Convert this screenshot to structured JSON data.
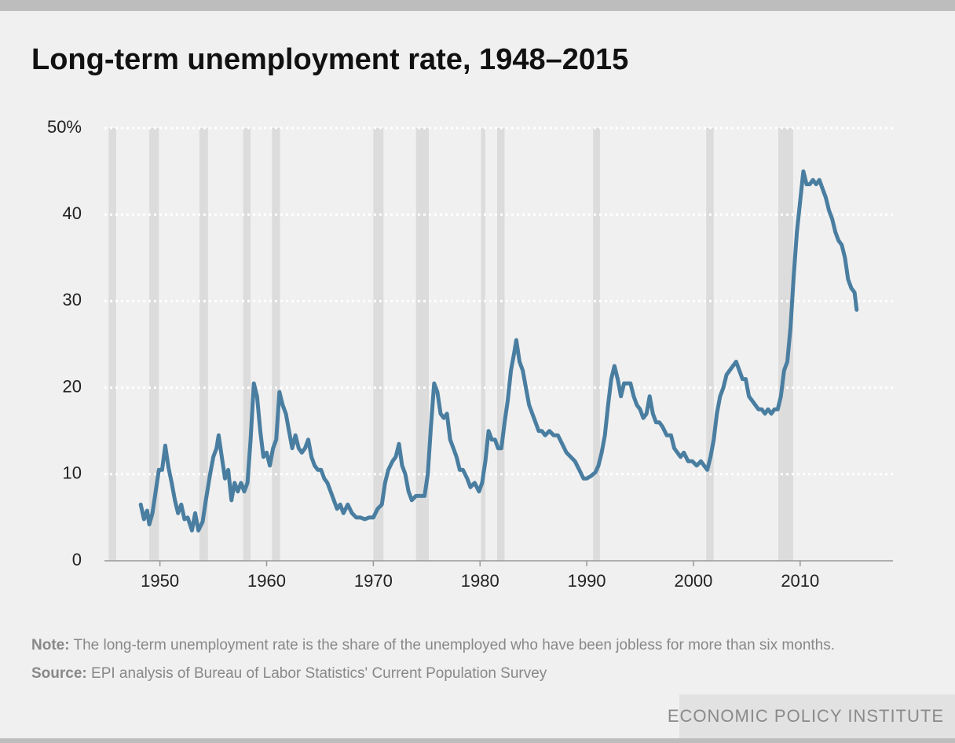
{
  "chart_data": {
    "type": "line",
    "title": "Long-term unemployment rate, 1948–2015",
    "color": "#4a7ea1",
    "shade_color": "#dcdcdc",
    "grid": true,
    "xlim": [
      1944.8,
      2018.7
    ],
    "ylim": [
      0,
      50
    ],
    "xticks": [
      1950,
      1960,
      1970,
      1980,
      1990,
      2000,
      2010
    ],
    "yticks": [
      0,
      10,
      20,
      30,
      40,
      {
        "value": 50,
        "label": "50%"
      }
    ],
    "shaded_periods": [
      [
        1945.2,
        1945.9
      ],
      [
        1949.0,
        1949.9
      ],
      [
        1953.7,
        1954.5
      ],
      [
        1957.8,
        1958.5
      ],
      [
        1960.5,
        1961.25
      ],
      [
        1970.0,
        1970.95
      ],
      [
        1974.0,
        1975.2
      ],
      [
        1980.1,
        1980.5
      ],
      [
        1981.6,
        1982.3
      ],
      [
        1990.6,
        1991.25
      ],
      [
        2001.2,
        2001.9
      ],
      [
        2007.95,
        2009.35
      ]
    ],
    "x": [
      1948.2,
      1948.5,
      1948.8,
      1949.0,
      1949.3,
      1949.6,
      1949.9,
      1950.2,
      1950.5,
      1950.8,
      1951.1,
      1951.4,
      1951.7,
      1952.0,
      1952.3,
      1952.6,
      1953.0,
      1953.3,
      1953.6,
      1954.0,
      1954.3,
      1954.7,
      1955.0,
      1955.3,
      1955.5,
      1955.8,
      1956.1,
      1956.4,
      1956.7,
      1957.0,
      1957.3,
      1957.6,
      1957.9,
      1958.2,
      1958.5,
      1958.8,
      1959.1,
      1959.4,
      1959.7,
      1960.0,
      1960.3,
      1960.6,
      1960.9,
      1961.2,
      1961.5,
      1961.8,
      1962.1,
      1962.4,
      1962.7,
      1963.0,
      1963.3,
      1963.6,
      1963.9,
      1964.2,
      1964.5,
      1964.8,
      1965.1,
      1965.4,
      1965.7,
      1966.0,
      1966.3,
      1966.6,
      1966.9,
      1967.2,
      1967.6,
      1968.0,
      1968.4,
      1968.8,
      1969.2,
      1969.6,
      1970.0,
      1970.4,
      1970.8,
      1971.1,
      1971.4,
      1971.8,
      1972.1,
      1972.4,
      1972.7,
      1973.0,
      1973.3,
      1973.6,
      1974.0,
      1974.4,
      1974.8,
      1975.1,
      1975.4,
      1975.7,
      1976.0,
      1976.3,
      1976.6,
      1976.9,
      1977.2,
      1977.5,
      1977.8,
      1978.1,
      1978.4,
      1978.8,
      1979.1,
      1979.5,
      1979.9,
      1980.2,
      1980.5,
      1980.8,
      1981.1,
      1981.4,
      1981.7,
      1982.0,
      1982.3,
      1982.6,
      1982.9,
      1983.2,
      1983.4,
      1983.7,
      1984.0,
      1984.3,
      1984.6,
      1984.9,
      1985.2,
      1985.5,
      1985.8,
      1986.1,
      1986.5,
      1986.9,
      1987.3,
      1987.7,
      1988.1,
      1988.5,
      1988.9,
      1989.3,
      1989.7,
      1990.0,
      1990.4,
      1990.8,
      1991.1,
      1991.4,
      1991.7,
      1992.0,
      1992.3,
      1992.6,
      1992.9,
      1993.2,
      1993.5,
      1993.8,
      1994.1,
      1994.4,
      1994.7,
      1995.0,
      1995.3,
      1995.6,
      1995.9,
      1996.2,
      1996.5,
      1996.8,
      1997.1,
      1997.5,
      1997.9,
      1998.2,
      1998.5,
      1998.8,
      1999.1,
      1999.5,
      1999.9,
      2000.3,
      2000.7,
      2001.0,
      2001.3,
      2001.6,
      2001.9,
      2002.2,
      2002.5,
      2002.8,
      2003.1,
      2003.4,
      2003.7,
      2004.0,
      2004.3,
      2004.6,
      2004.9,
      2005.2,
      2005.5,
      2005.8,
      2006.1,
      2006.4,
      2006.7,
      2007.0,
      2007.3,
      2007.6,
      2007.9,
      2008.2,
      2008.5,
      2008.8,
      2009.1,
      2009.4,
      2009.7,
      2010.0,
      2010.3,
      2010.6,
      2010.9,
      2011.2,
      2011.5,
      2011.8,
      2012.1,
      2012.4,
      2012.7,
      2013.0,
      2013.3,
      2013.6,
      2013.9,
      2014.2,
      2014.5,
      2014.8,
      2015.1,
      2015.3
    ],
    "values": [
      6.5,
      4.8,
      5.8,
      4.2,
      5.5,
      8,
      10.5,
      10.5,
      13.3,
      10.8,
      9,
      7,
      5.5,
      6.5,
      4.8,
      5,
      3.5,
      5.5,
      3.5,
      4.5,
      7,
      10,
      12,
      13,
      14.5,
      12,
      9.5,
      10.5,
      7,
      9,
      8,
      9,
      8,
      9,
      14,
      20.5,
      19,
      15,
      12,
      12.5,
      11,
      13,
      14,
      19.5,
      18,
      17,
      15,
      13,
      14.5,
      13,
      12.5,
      13,
      14,
      12,
      11,
      10.5,
      10.5,
      9.5,
      9,
      8,
      7,
      6,
      6.5,
      5.5,
      6.5,
      5.5,
      5,
      5,
      4.8,
      5,
      5,
      6,
      6.5,
      9,
      10.5,
      11.5,
      12,
      13.5,
      11,
      10,
      8,
      7,
      7.5,
      7.5,
      7.5,
      10,
      15.5,
      20.5,
      19.5,
      17,
      16.5,
      17,
      14,
      13,
      12,
      10.5,
      10.5,
      9.5,
      8.5,
      9,
      8,
      9,
      11.5,
      15,
      14,
      14,
      13,
      13,
      16,
      18.5,
      22,
      24,
      25.5,
      23,
      22,
      20,
      18,
      17,
      16,
      15,
      15,
      14.5,
      15,
      14.5,
      14.5,
      13.5,
      12.5,
      12,
      11.5,
      10.5,
      9.5,
      9.5,
      9.8,
      10.2,
      11,
      12.5,
      14.5,
      18,
      21,
      22.5,
      21,
      19,
      20.5,
      20.5,
      20.5,
      19,
      18,
      17.5,
      16.5,
      17,
      19,
      17,
      16,
      16,
      15.5,
      14.5,
      14.5,
      13,
      12.5,
      12,
      12.5,
      11.5,
      11.5,
      11,
      11.5,
      11,
      10.5,
      12,
      14,
      17,
      19,
      20,
      21.5,
      22,
      22.5,
      23,
      22,
      21,
      21,
      19,
      18.5,
      18,
      17.5,
      17.5,
      17,
      17.5,
      17,
      17.5,
      17.5,
      19,
      22,
      23,
      27,
      33,
      38,
      41.5,
      45,
      43.5,
      43.5,
      44,
      43.5,
      44,
      43,
      42,
      40.5,
      39.5,
      38,
      37,
      36.5,
      35,
      32.5,
      31.5,
      31,
      29
    ]
  },
  "footer": {
    "note_label": "Note:",
    "note": "The long-term unemployment rate is the share of the unemployed who have been jobless for more than six months.",
    "source_label": "Source:",
    "source": "EPI analysis of Bureau of Labor Statistics' Current Population Survey",
    "brand": "ECONOMIC POLICY INSTITUTE"
  }
}
